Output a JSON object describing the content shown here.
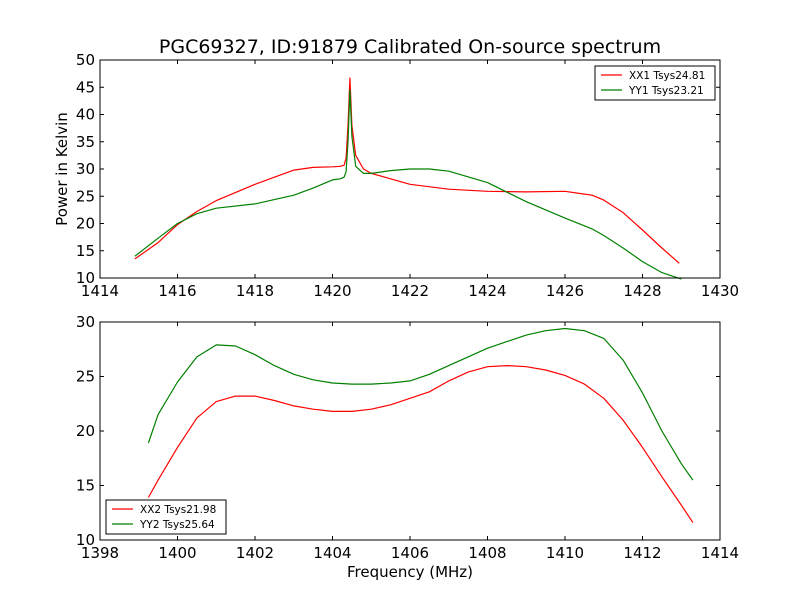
{
  "chart_data": [
    {
      "type": "line",
      "title": "PGC69327, ID:91879 Calibrated On-source spectrum",
      "xlabel": "",
      "ylabel": "Power in Kelvin",
      "xlim": [
        1414,
        1430
      ],
      "ylim": [
        10,
        50
      ],
      "xticks": [
        "1414",
        "1416",
        "1418",
        "1420",
        "1422",
        "1424",
        "1426",
        "1428",
        "1430"
      ],
      "yticks": [
        "10",
        "15",
        "20",
        "25",
        "30",
        "35",
        "40",
        "45",
        "50"
      ],
      "legend_position": "top-right",
      "series": [
        {
          "name": "XX1 Tsys24.81",
          "color": "#ff0000",
          "x": [
            1414.9,
            1415.5,
            1416,
            1416.5,
            1417,
            1418,
            1419,
            1419.5,
            1420,
            1420.2,
            1420.3,
            1420.35,
            1420.4,
            1420.45,
            1420.5,
            1420.6,
            1420.8,
            1421,
            1422,
            1423,
            1424,
            1425,
            1426,
            1426.5,
            1426.7,
            1427,
            1427.5,
            1428,
            1428.5,
            1428.95
          ],
          "y": [
            13.5,
            16.5,
            19.8,
            22.2,
            24.2,
            27.2,
            29.8,
            30.3,
            30.4,
            30.5,
            30.7,
            32.0,
            38.0,
            46.7,
            38.0,
            32.5,
            30.0,
            29.2,
            27.2,
            26.3,
            25.9,
            25.8,
            25.9,
            25.4,
            25.2,
            24.3,
            22.0,
            18.8,
            15.5,
            12.7
          ]
        },
        {
          "name": "YY1 Tsys23.21",
          "color": "#008000",
          "x": [
            1414.9,
            1415.5,
            1416,
            1416.5,
            1417,
            1418,
            1419,
            1419.5,
            1420,
            1420.2,
            1420.3,
            1420.35,
            1420.4,
            1420.45,
            1420.5,
            1420.6,
            1420.8,
            1421,
            1421.5,
            1422,
            1422.5,
            1423,
            1424,
            1425,
            1426,
            1426.7,
            1427,
            1427.5,
            1428,
            1428.5,
            1429
          ],
          "y": [
            14.0,
            17.3,
            20.0,
            21.8,
            22.8,
            23.6,
            25.2,
            26.5,
            28.0,
            28.2,
            28.5,
            29.5,
            35.0,
            44.5,
            36.0,
            30.5,
            29.2,
            29.2,
            29.7,
            30.0,
            30.0,
            29.6,
            27.5,
            24.0,
            21.0,
            19.0,
            17.8,
            15.5,
            13.0,
            11.0,
            9.8
          ]
        }
      ]
    },
    {
      "type": "line",
      "title": "",
      "xlabel": "Frequency (MHz)",
      "ylabel": "",
      "xlim": [
        1398,
        1414
      ],
      "ylim": [
        10,
        30
      ],
      "xticks": [
        "1398",
        "1400",
        "1402",
        "1404",
        "1406",
        "1408",
        "1410",
        "1412",
        "1414"
      ],
      "yticks": [
        "10",
        "15",
        "20",
        "25",
        "30"
      ],
      "legend_position": "bottom-left",
      "series": [
        {
          "name": "XX2 Tsys21.98",
          "color": "#ff0000",
          "x": [
            1399.25,
            1399.5,
            1400,
            1400.5,
            1401,
            1401.5,
            1402,
            1402.5,
            1403,
            1403.5,
            1404,
            1404.5,
            1405,
            1405.5,
            1406,
            1406.5,
            1407,
            1407.5,
            1408,
            1408.5,
            1409,
            1409.5,
            1410,
            1410.5,
            1411,
            1411.5,
            1412,
            1412.5,
            1413,
            1413.3
          ],
          "y": [
            13.9,
            15.5,
            18.5,
            21.2,
            22.7,
            23.2,
            23.2,
            22.8,
            22.3,
            22.0,
            21.8,
            21.8,
            22.0,
            22.4,
            23.0,
            23.6,
            24.6,
            25.4,
            25.9,
            26.0,
            25.9,
            25.6,
            25.1,
            24.3,
            23.0,
            21.0,
            18.5,
            15.8,
            13.2,
            11.6
          ]
        },
        {
          "name": "YY2 Tsys25.64",
          "color": "#008000",
          "x": [
            1399.25,
            1399.5,
            1400,
            1400.5,
            1401,
            1401.5,
            1402,
            1402.5,
            1403,
            1403.5,
            1404,
            1404.5,
            1405,
            1405.5,
            1406,
            1406.5,
            1407,
            1407.5,
            1408,
            1408.5,
            1409,
            1409.5,
            1410,
            1410.5,
            1411,
            1411.5,
            1412,
            1412.5,
            1413,
            1413.3
          ],
          "y": [
            18.9,
            21.5,
            24.5,
            26.8,
            27.9,
            27.8,
            27.0,
            26.0,
            25.2,
            24.7,
            24.4,
            24.3,
            24.3,
            24.4,
            24.6,
            25.2,
            26.0,
            26.8,
            27.6,
            28.2,
            28.8,
            29.2,
            29.4,
            29.2,
            28.5,
            26.5,
            23.5,
            20.0,
            17.0,
            15.5
          ]
        }
      ]
    }
  ]
}
